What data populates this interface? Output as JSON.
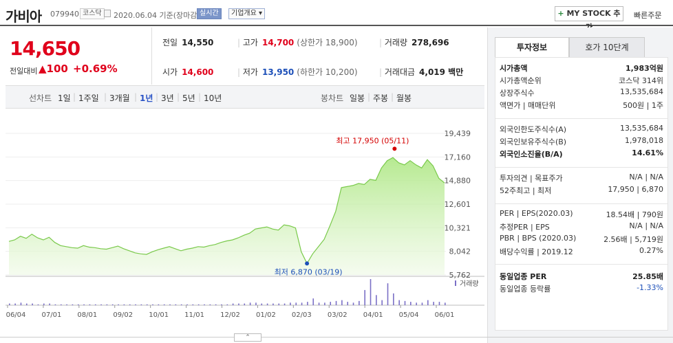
{
  "header": {
    "name": "가비아",
    "code": "079940",
    "market": "코스닥",
    "date": "2020.06.04 기준(장마감)",
    "live_badge": "실시간",
    "company_badge": "기업개요 ▾",
    "mystock_plus": "+",
    "mystock_label": "MY STOCK 추가",
    "quick_order": "빠른주문"
  },
  "quote": {
    "price": "14,650",
    "change_label": "전일대비",
    "change": "▲100",
    "change_pct": "+0.69%",
    "prev_label": "전일",
    "prev": "14,550",
    "high_label": "고가",
    "high": "14,700",
    "upper_limit": "(상한가 18,900)",
    "volume_label": "거래량",
    "volume": "278,696",
    "open_label": "시가",
    "open": "14,600",
    "low_label": "저가",
    "low": "13,950",
    "lower_limit": "(하한가 10,200)",
    "amount_label": "거래대금",
    "amount": "4,019 백만"
  },
  "tabs": {
    "line_label": "선차트",
    "periods": [
      "1일",
      "1주일",
      "3개월",
      "1년",
      "3년",
      "5년",
      "10년"
    ],
    "active": "1년",
    "candle_label": "봉차트",
    "candles": [
      "일봉",
      "주봉",
      "월봉"
    ]
  },
  "chart_data": {
    "type": "area",
    "x_labels": [
      "06/04",
      "07/01",
      "08/01",
      "09/02",
      "10/01",
      "11/01",
      "12/02",
      "01/02",
      "02/03",
      "03/02",
      "04/01",
      "05/04",
      "06/01"
    ],
    "y_ticks": [
      "19,439",
      "17,160",
      "14,880",
      "12,601",
      "10,321",
      "8,042",
      "5,762"
    ],
    "ylim": [
      5762,
      19439
    ],
    "series": [
      {
        "values": [
          9000,
          9150,
          9500,
          9300,
          9700,
          9350,
          9150,
          9400,
          8900,
          8600,
          8500,
          8400,
          8350,
          8600,
          8450,
          8400,
          8300,
          8250,
          8400,
          8550,
          8300,
          8100,
          7900,
          7800,
          7750,
          8000,
          8200,
          8350,
          8500,
          8300,
          8100,
          8250,
          8350,
          8500,
          8450,
          8600,
          8700,
          8900,
          9050,
          9150,
          9350,
          9600,
          9800,
          10200,
          10300,
          10400,
          10200,
          10100,
          10600,
          10500,
          10300,
          8000,
          6870,
          7800,
          8500,
          9200,
          10500,
          11900,
          14200,
          14300,
          14400,
          14600,
          14500,
          15000,
          14900,
          16100,
          16800,
          17100,
          16600,
          16400,
          16800,
          16400,
          16100,
          16900,
          16300,
          15100,
          14650
        ]
      }
    ],
    "high_label": "최고 17,950 (05/11)",
    "low_label": "최저 6,870 (03/19)",
    "high": {
      "index": 68,
      "value": 17950
    },
    "low": {
      "index": 52,
      "value": 6870
    },
    "volume_legend": "거래량",
    "volume": [
      2,
      2,
      3,
      2,
      2,
      1,
      2,
      2,
      1,
      1,
      1,
      1,
      1,
      1,
      1,
      1,
      1,
      1,
      1,
      1,
      1,
      1,
      1,
      1,
      1,
      1,
      1,
      1,
      1,
      1,
      1,
      1,
      1,
      1,
      1,
      1,
      1,
      1,
      1,
      2,
      2,
      2,
      3,
      3,
      2,
      2,
      2,
      2,
      2,
      3,
      3,
      3,
      4,
      8,
      3,
      3,
      4,
      5,
      6,
      4,
      3,
      5,
      18,
      31,
      12,
      6,
      26,
      14,
      6,
      5,
      4,
      3,
      3,
      6,
      4,
      4,
      3
    ]
  },
  "right": {
    "tab_info": "투자정보",
    "tab_orderbook": "호가 10단계",
    "rows": [
      {
        "k": "시가총액",
        "v": "1,983억원",
        "bold": true
      },
      {
        "k": "시가총액순위",
        "v": "코스닥 314위"
      },
      {
        "k": "상장주식수",
        "v": "13,535,684"
      },
      {
        "k": "액면가 | 매매단위",
        "v": "500원 | 1주"
      },
      {
        "k": "외국인한도주식수(A)",
        "v": "13,535,684"
      },
      {
        "k": "외국인보유주식수(B)",
        "v": "1,978,018"
      },
      {
        "k": "외국인소진율(B/A)",
        "v": "14.61%",
        "bold": true
      },
      {
        "k": "투자의견 | 목표주가",
        "v": "N/A | N/A"
      },
      {
        "k": "52주최고 | 최저",
        "v": "17,950 | 6,870"
      },
      {
        "k": "PER | EPS(2020.03)",
        "v": "18.54배 | 790원"
      },
      {
        "k": "추정PER | EPS",
        "v": "N/A | N/A"
      },
      {
        "k": "PBR | BPS (2020.03)",
        "v": "2.56배 | 5,719원"
      },
      {
        "k": "배당수익률 | 2019.12",
        "v": "0.27%"
      },
      {
        "k": "동일업종 PER",
        "v": "25.85배",
        "bold": true
      },
      {
        "k": "동일업종 등락률",
        "v": "-1.33%",
        "blue": true
      }
    ]
  },
  "collapse": "⌃"
}
